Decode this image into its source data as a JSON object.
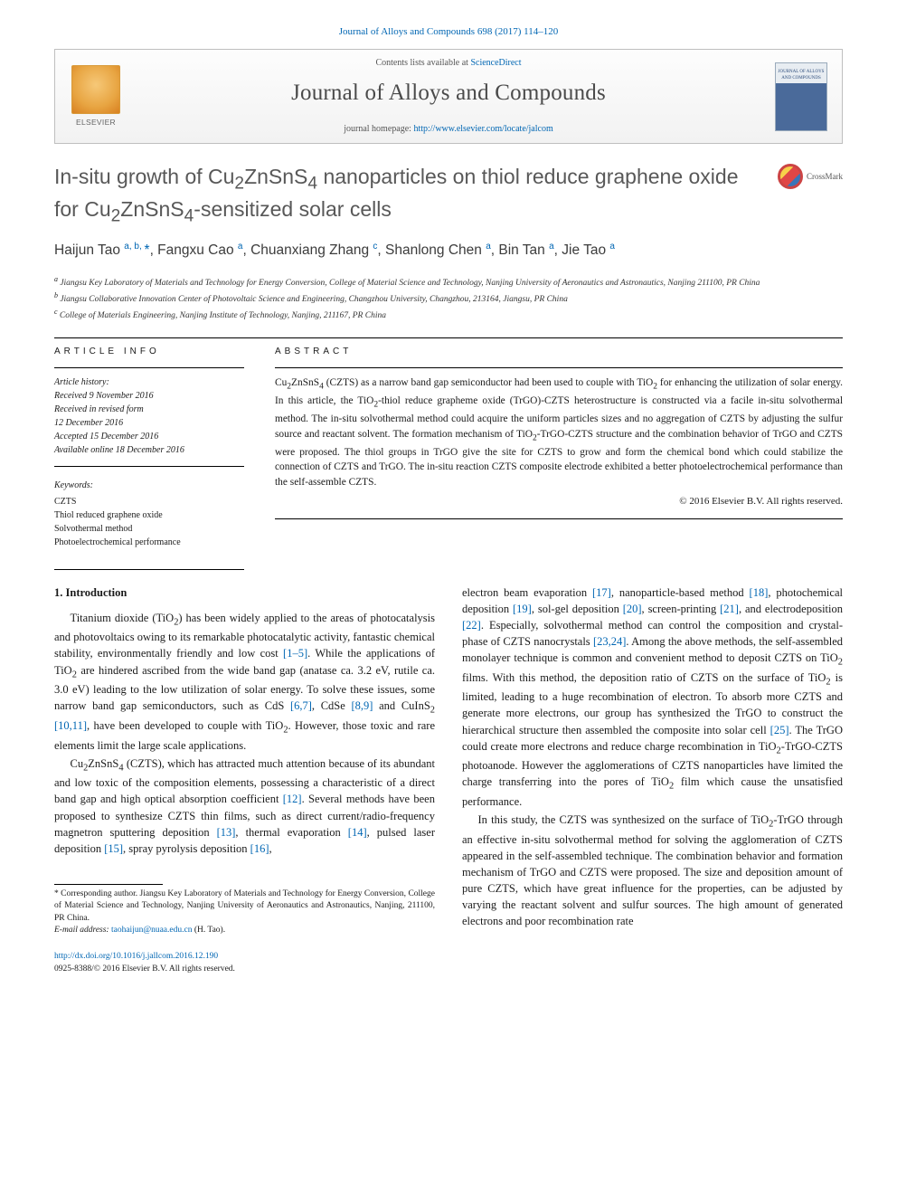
{
  "top_citation": "Journal of Alloys and Compounds 698 (2017) 114–120",
  "banner": {
    "contents_line_prefix": "Contents lists available at ",
    "contents_link": "ScienceDirect",
    "journal_name": "Journal of Alloys and Compounds",
    "homepage_prefix": "journal homepage: ",
    "homepage_url": "http://www.elsevier.com/locate/jalcom",
    "publisher": "ELSEVIER",
    "cover_text": "JOURNAL OF ALLOYS AND COMPOUNDS"
  },
  "crossmark_label": "CrossMark",
  "title_html": "In-situ growth of Cu<sub>2</sub>ZnSnS<sub>4</sub> nanoparticles on thiol reduce graphene oxide for Cu<sub>2</sub>ZnSnS<sub>4</sub>-sensitized solar cells",
  "authors_html": "Haijun Tao <sup>a, b, </sup><span class=\"star\">*</span>, Fangxu Cao <sup>a</sup>, Chuanxiang Zhang <sup>c</sup>, Shanlong Chen <sup>a</sup>, Bin Tan <sup>a</sup>, Jie Tao <sup>a</sup>",
  "affiliations": [
    "Jiangsu Key Laboratory of Materials and Technology for Energy Conversion, College of Material Science and Technology, Nanjing University of Aeronautics and Astronautics, Nanjing 211100, PR China",
    "Jiangsu Collaborative Innovation Center of Photovoltaic Science and Engineering, Changzhou University, Changzhou, 213164, Jiangsu, PR China",
    "College of Materials Engineering, Nanjing Institute of Technology, Nanjing, 211167, PR China"
  ],
  "affil_markers": [
    "a",
    "b",
    "c"
  ],
  "article_info_head": "ARTICLE INFO",
  "abstract_head": "ABSTRACT",
  "history": {
    "label": "Article history:",
    "received": "Received 9 November 2016",
    "revised1": "Received in revised form",
    "revised2": "12 December 2016",
    "accepted": "Accepted 15 December 2016",
    "online": "Available online 18 December 2016"
  },
  "keywords_label": "Keywords:",
  "keywords": [
    "CZTS",
    "Thiol reduced graphene oxide",
    "Solvothermal method",
    "Photoelectrochemical performance"
  ],
  "abstract_html": "Cu<sub>2</sub>ZnSnS<sub>4</sub> (CZTS) as a narrow band gap semiconductor had been used to couple with TiO<sub>2</sub> for enhancing the utilization of solar energy. In this article, the TiO<sub>2</sub>-thiol reduce grapheme oxide (TrGO)-CZTS heterostructure is constructed via a facile in-situ solvothermal method. The in-situ solvothermal method could acquire the uniform particles sizes and no aggregation of CZTS by adjusting the sulfur source and reactant solvent. The formation mechanism of TiO<sub>2</sub>-TrGO-CZTS structure and the combination behavior of TrGO and CZTS were proposed. The thiol groups in TrGO give the site for CZTS to grow and form the chemical bond which could stabilize the connection of CZTS and TrGO. The in-situ reaction CZTS composite electrode exhibited a better photoelectrochemical performance than the self-assemble CZTS.",
  "copyright": "© 2016 Elsevier B.V. All rights reserved.",
  "section_1_head": "1. Introduction",
  "col_left": {
    "p1_html": "Titanium dioxide (TiO<sub>2</sub>) has been widely applied to the areas of photocatalysis and photovoltaics owing to its remarkable photocatalytic activity, fantastic chemical stability, environmentally friendly and low cost <a class=\"ref\">[1–5]</a>. While the applications of TiO<sub>2</sub> are hindered ascribed from the wide band gap (anatase ca. 3.2 eV, rutile ca. 3.0 eV) leading to the low utilization of solar energy. To solve these issues, some narrow band gap semiconductors, such as CdS <a class=\"ref\">[6,7]</a>, CdSe <a class=\"ref\">[8,9]</a> and CuInS<sub>2</sub> <a class=\"ref\">[10,11]</a>, have been developed to couple with TiO<sub>2</sub>. However, those toxic and rare elements limit the large scale applications.",
    "p2_html": "Cu<sub>2</sub>ZnSnS<sub>4</sub> (CZTS), which has attracted much attention because of its abundant and low toxic of the composition elements, possessing a characteristic of a direct band gap and high optical absorption coefficient <a class=\"ref\">[12]</a>. Several methods have been proposed to synthesize CZTS thin films, such as direct current/radio-frequency magnetron sputtering deposition <a class=\"ref\">[13]</a>, thermal evaporation <a class=\"ref\">[14]</a>, pulsed laser deposition <a class=\"ref\">[15]</a>, spray pyrolysis deposition <a class=\"ref\">[16]</a>,"
  },
  "col_right": {
    "p1_html": "electron beam evaporation <a class=\"ref\">[17]</a>, nanoparticle-based method <a class=\"ref\">[18]</a>, photochemical deposition <a class=\"ref\">[19]</a>, sol-gel deposition <a class=\"ref\">[20]</a>, screen-printing <a class=\"ref\">[21]</a>, and electrodeposition <a class=\"ref\">[22]</a>. Especially, solvothermal method can control the composition and crystal-phase of CZTS nanocrystals <a class=\"ref\">[23,24]</a>. Among the above methods, the self-assembled monolayer technique is common and convenient method to deposit CZTS on TiO<sub>2</sub> films. With this method, the deposition ratio of CZTS on the surface of TiO<sub>2</sub> is limited, leading to a huge recombination of electron. To absorb more CZTS and generate more electrons, our group has synthesized the TrGO to construct the hierarchical structure then assembled the composite into solar cell <a class=\"ref\">[25]</a>. The TrGO could create more electrons and reduce charge recombination in TiO<sub>2</sub>-TrGO-CZTS photoanode. However the agglomerations of CZTS nanoparticles have limited the charge transferring into the pores of TiO<sub>2</sub> film which cause the unsatisfied performance.",
    "p2_html": "In this study, the CZTS was synthesized on the surface of TiO<sub>2</sub>-TrGO through an effective in-situ solvothermal method for solving the agglomeration of CZTS appeared in the self-assembled technique. The combination behavior and formation mechanism of TrGO and CZTS were proposed. The size and deposition amount of pure CZTS, which have great influence for the properties, can be adjusted by varying the reactant solvent and sulfur sources. The high amount of generated electrons and poor recombination rate"
  },
  "footer": {
    "corr_html": "* Corresponding author. Jiangsu Key Laboratory of Materials and Technology for Energy Conversion, College of Material Science and Technology, Nanjing University of Aeronautics and Astronautics, Nanjing, 211100, PR China.",
    "email_label": "E-mail address: ",
    "email": "taohaijun@nuaa.edu.cn",
    "email_suffix": " (H. Tao).",
    "doi_url": "http://dx.doi.org/10.1016/j.jallcom.2016.12.190",
    "issn_line": "0925-8388/© 2016 Elsevier B.V. All rights reserved."
  },
  "colors": {
    "link": "#0066b3",
    "text": "#1a1a1a",
    "title_gray": "#585858",
    "banner_border": "#bfbfbf"
  }
}
